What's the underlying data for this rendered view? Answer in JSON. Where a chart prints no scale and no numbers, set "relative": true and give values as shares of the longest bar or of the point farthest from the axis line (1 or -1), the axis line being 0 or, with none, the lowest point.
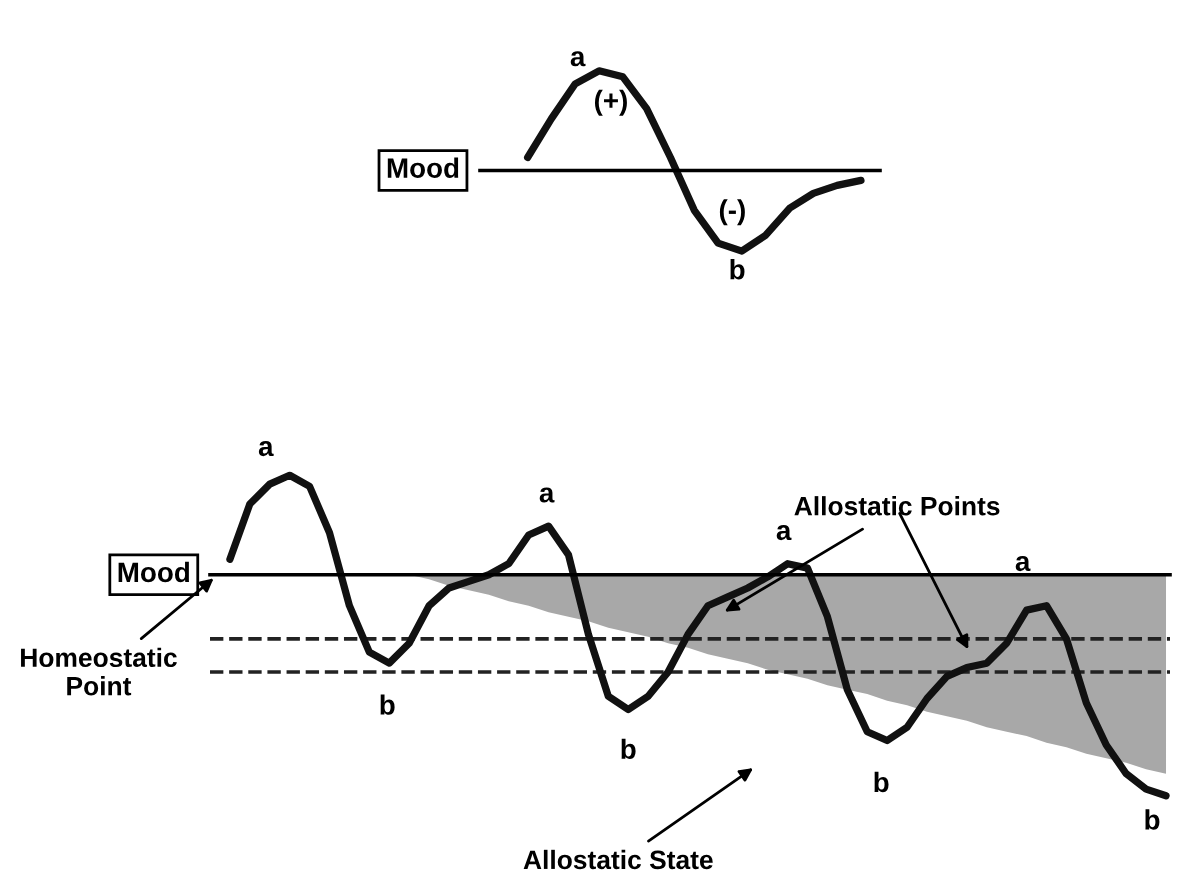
{
  "chart_data": [
    {
      "type": "line",
      "relative": true,
      "ylabel": "Mood",
      "categories": [
        null,
        null,
        null,
        null,
        null,
        null,
        null,
        null,
        null,
        null,
        null,
        null,
        null,
        null,
        null
      ],
      "series": [
        {
          "color": "#111111",
          "values": [
            0.13,
            0.52,
            0.87,
            1.0,
            0.94,
            0.62,
            0.13,
            -0.4,
            -0.73,
            -0.81,
            -0.65,
            -0.38,
            -0.23,
            -0.15,
            -0.1
          ]
        }
      ],
      "annotations": [
        "a",
        "(+)",
        "(-)",
        "b"
      ]
    },
    {
      "type": "line",
      "relative": true,
      "ylabel": "Mood",
      "categories": [
        null,
        null,
        null,
        null,
        null,
        null,
        null,
        null,
        null,
        null,
        null,
        null,
        null,
        null,
        null,
        null,
        null,
        null,
        null,
        null,
        null,
        null,
        null,
        null,
        null,
        null,
        null,
        null,
        null,
        null,
        null,
        null,
        null,
        null,
        null,
        null,
        null,
        null,
        null,
        null,
        null,
        null,
        null,
        null,
        null,
        null,
        null,
        null
      ],
      "series": [
        {
          "type": "area",
          "color": "#a8a8a8",
          "values": [
            null,
            null,
            null,
            null,
            null,
            null,
            null,
            null,
            null,
            0,
            -0.02,
            -0.05,
            -0.07,
            -0.09,
            -0.12,
            -0.14,
            -0.17,
            -0.19,
            -0.21,
            -0.24,
            -0.26,
            -0.28,
            -0.31,
            -0.33,
            -0.36,
            -0.38,
            -0.4,
            -0.43,
            -0.45,
            -0.47,
            -0.5,
            -0.52,
            -0.54,
            -0.57,
            -0.59,
            -0.62,
            -0.64,
            -0.66,
            -0.69,
            -0.71,
            -0.73,
            -0.76,
            -0.78,
            -0.81,
            -0.83,
            -0.85,
            -0.88,
            -0.9
          ]
        },
        {
          "color": "#111111",
          "values": [
            0.07,
            0.32,
            0.41,
            0.45,
            0.4,
            0.19,
            -0.14,
            -0.35,
            -0.4,
            -0.31,
            -0.14,
            -0.06,
            -0.03,
            0,
            0.05,
            0.18,
            0.22,
            0.09,
            -0.27,
            -0.55,
            -0.61,
            -0.55,
            -0.44,
            -0.27,
            -0.14,
            -0.1,
            -0.06,
            -0.01,
            0.05,
            0.03,
            -0.19,
            -0.52,
            -0.71,
            -0.75,
            -0.69,
            -0.56,
            -0.46,
            -0.42,
            -0.4,
            -0.31,
            -0.16,
            -0.14,
            -0.29,
            -0.58,
            -0.77,
            -0.9,
            -0.97,
            -1
          ]
        }
      ],
      "ref_lines": [
        {
          "axis": "y",
          "value": -0.29,
          "line_style": "dashed",
          "color": "#222222"
        },
        {
          "axis": "y",
          "value": -0.44,
          "line_style": "dashed",
          "color": "#222222"
        }
      ],
      "annotations": [
        "a",
        "a",
        "a",
        "a",
        "b",
        "b",
        "b",
        "b",
        "Allostatic Points",
        "Allostatic State",
        "Homeostatic\nPoint"
      ]
    }
  ]
}
